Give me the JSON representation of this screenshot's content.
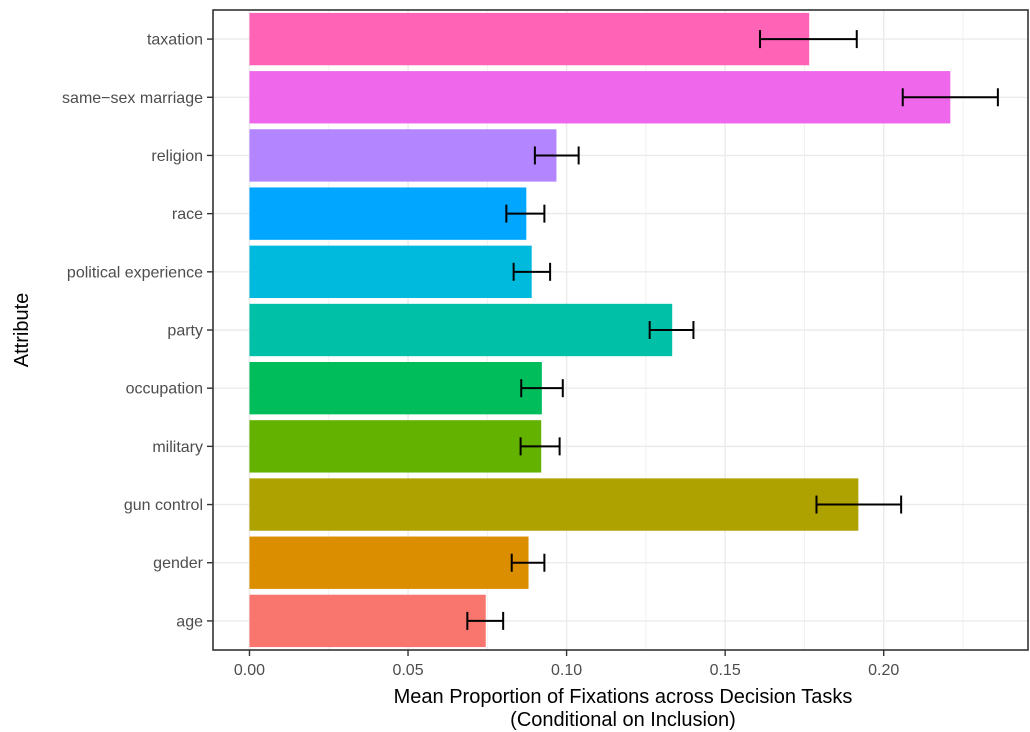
{
  "chart_data": {
    "type": "bar",
    "orientation": "horizontal",
    "categories": [
      "age",
      "gender",
      "gun control",
      "military",
      "occupation",
      "party",
      "political experience",
      "race",
      "religion",
      "same−sex marriage",
      "taxation"
    ],
    "values": [
      0.0745,
      0.088,
      0.192,
      0.092,
      0.0922,
      0.1333,
      0.089,
      0.0873,
      0.0968,
      0.221,
      0.1765
    ],
    "error_low": [
      0.0687,
      0.0827,
      0.1788,
      0.0855,
      0.0857,
      0.1262,
      0.0833,
      0.081,
      0.09,
      0.206,
      0.161
    ],
    "error_high": [
      0.08,
      0.093,
      0.2055,
      0.0978,
      0.0988,
      0.14,
      0.0948,
      0.093,
      0.1038,
      0.236,
      0.1915
    ],
    "colors": [
      "#F8766D",
      "#DB8E00",
      "#AEA200",
      "#64B200",
      "#00BD5C",
      "#00C1A7",
      "#00BADE",
      "#00A6FF",
      "#B385FF",
      "#EF67EB",
      "#FF63B6"
    ],
    "xlabel": "Mean Proportion of Fixations across Decision Tasks",
    "xlabel_line2": "(Conditional on Inclusion)",
    "ylabel": "Attribute",
    "xlim": [
      -0.0115,
      0.2455
    ],
    "xticks": [
      0.0,
      0.05,
      0.1,
      0.15,
      0.2
    ],
    "xtick_labels": [
      "0.00",
      "0.05",
      "0.10",
      "0.15",
      "0.20"
    ],
    "grid": true,
    "legend": "none"
  }
}
